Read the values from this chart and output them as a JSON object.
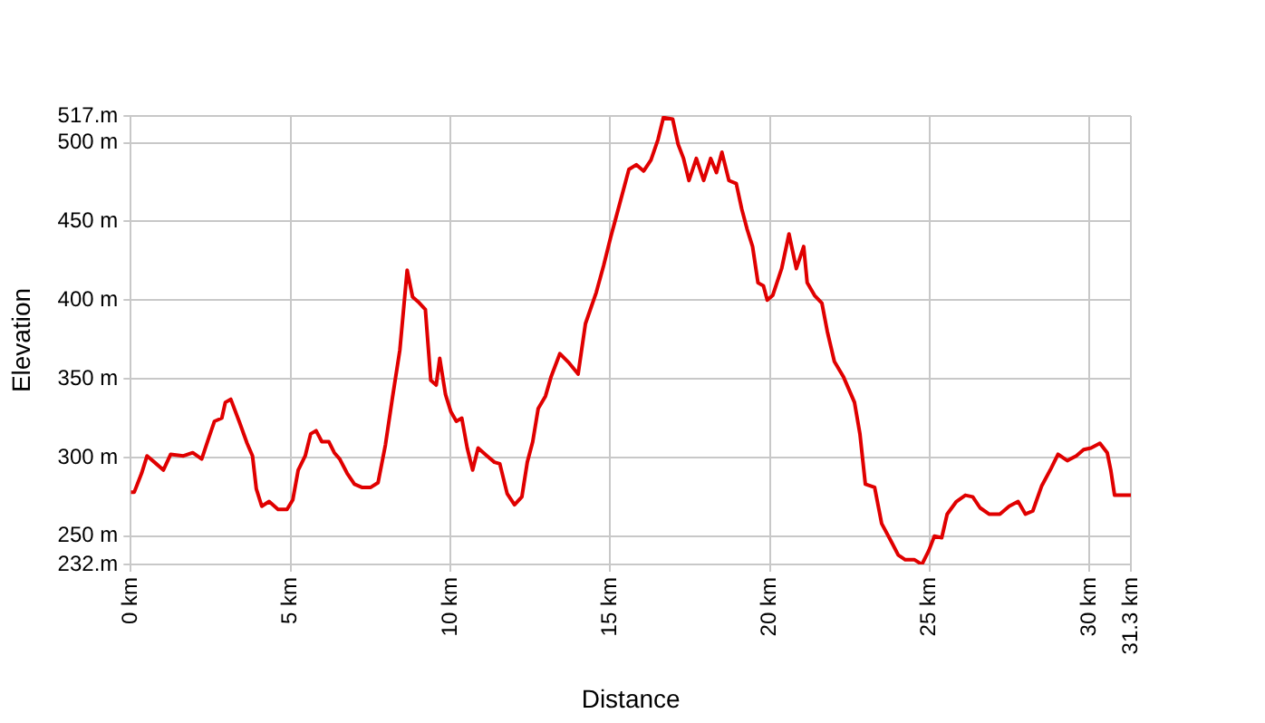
{
  "chart_data": {
    "type": "line",
    "xlabel": "Distance",
    "ylabel": "Elevation",
    "x": [
      0,
      0.11,
      0.34,
      0.51,
      0.74,
      1.02,
      1.25,
      1.65,
      1.94,
      2.22,
      2.45,
      2.62,
      2.85,
      2.96,
      3.13,
      3.41,
      3.64,
      3.81,
      3.93,
      4.1,
      4.33,
      4.61,
      4.89,
      5.07,
      5.24,
      5.46,
      5.63,
      5.8,
      5.98,
      6.2,
      6.37,
      6.54,
      6.77,
      7.0,
      7.23,
      7.51,
      7.74,
      7.97,
      8.19,
      8.42,
      8.65,
      8.82,
      8.99,
      9.22,
      9.39,
      9.56,
      9.67,
      9.85,
      10.02,
      10.19,
      10.36,
      10.53,
      10.7,
      10.87,
      11.15,
      11.38,
      11.55,
      11.78,
      12.01,
      12.24,
      12.41,
      12.58,
      12.75,
      12.98,
      13.15,
      13.43,
      13.72,
      14.0,
      14.23,
      14.57,
      14.8,
      15.02,
      15.14,
      15.59,
      15.82,
      16.05,
      16.28,
      16.5,
      16.67,
      16.96,
      17.13,
      17.3,
      17.47,
      17.7,
      17.93,
      18.15,
      18.33,
      18.5,
      18.72,
      18.95,
      19.12,
      19.29,
      19.46,
      19.63,
      19.8,
      19.92,
      20.09,
      20.37,
      20.6,
      20.83,
      21.06,
      21.17,
      21.4,
      21.63,
      21.8,
      22.02,
      22.31,
      22.65,
      22.82,
      22.99,
      23.28,
      23.5,
      23.79,
      24.02,
      24.24,
      24.53,
      24.76,
      24.98,
      25.15,
      25.38,
      25.55,
      25.84,
      26.12,
      26.35,
      26.58,
      26.86,
      27.2,
      27.49,
      27.77,
      28.0,
      28.23,
      28.51,
      28.8,
      29.02,
      29.31,
      29.59,
      29.82,
      30.05,
      30.33,
      30.56,
      30.67,
      30.79,
      31.3
    ],
    "series": [
      {
        "color": "#e00000",
        "values": [
          278,
          278,
          290,
          301,
          297,
          292,
          302,
          301,
          303,
          299,
          313,
          323,
          325,
          335,
          337,
          322,
          309,
          301,
          280,
          269,
          272,
          267,
          267,
          273,
          292,
          301,
          315,
          317,
          310,
          310,
          303,
          299,
          290,
          283,
          281,
          281,
          284,
          308,
          338,
          368,
          419,
          402,
          399,
          394,
          349,
          346,
          363,
          340,
          329,
          323,
          325,
          306,
          292,
          306,
          301,
          297,
          296,
          277,
          270,
          275,
          297,
          310,
          331,
          339,
          351,
          366,
          360,
          353,
          385,
          405,
          422,
          440,
          449,
          483,
          486,
          482,
          489,
          502,
          516,
          515,
          499,
          490,
          476,
          490,
          476,
          490,
          481,
          494,
          476,
          474,
          458,
          445,
          434,
          411,
          409,
          400,
          403,
          420,
          442,
          420,
          434,
          411,
          403,
          398,
          380,
          361,
          351,
          335,
          315,
          283,
          281,
          258,
          247,
          238,
          235,
          235,
          232,
          241,
          250,
          249,
          264,
          272,
          276,
          275,
          268,
          264,
          264,
          269,
          272,
          264,
          266,
          282,
          293,
          302,
          298,
          301,
          305,
          306,
          309,
          303,
          292,
          276,
          276
        ]
      }
    ],
    "xlim": [
      0,
      31.3
    ],
    "ylim": [
      232,
      517
    ],
    "xticks": [
      {
        "value": 0,
        "label": "0 km"
      },
      {
        "value": 5,
        "label": "5 km"
      },
      {
        "value": 10,
        "label": "10 km"
      },
      {
        "value": 15,
        "label": "15 km"
      },
      {
        "value": 20,
        "label": "20 km"
      },
      {
        "value": 25,
        "label": "25 km"
      },
      {
        "value": 30,
        "label": "30 km"
      },
      {
        "value": 31.3,
        "label": "31.3 km"
      }
    ],
    "yticks": [
      {
        "value": 232,
        "label": "232.m"
      },
      {
        "value": 250,
        "label": "250 m"
      },
      {
        "value": 300,
        "label": "300 m"
      },
      {
        "value": 350,
        "label": "350 m"
      },
      {
        "value": 400,
        "label": "400 m"
      },
      {
        "value": 450,
        "label": "450 m"
      },
      {
        "value": 500,
        "label": "500 m"
      },
      {
        "value": 517,
        "label": "517.m"
      }
    ],
    "grid": true,
    "legend": false,
    "marker": "none",
    "line_style": "solid"
  }
}
